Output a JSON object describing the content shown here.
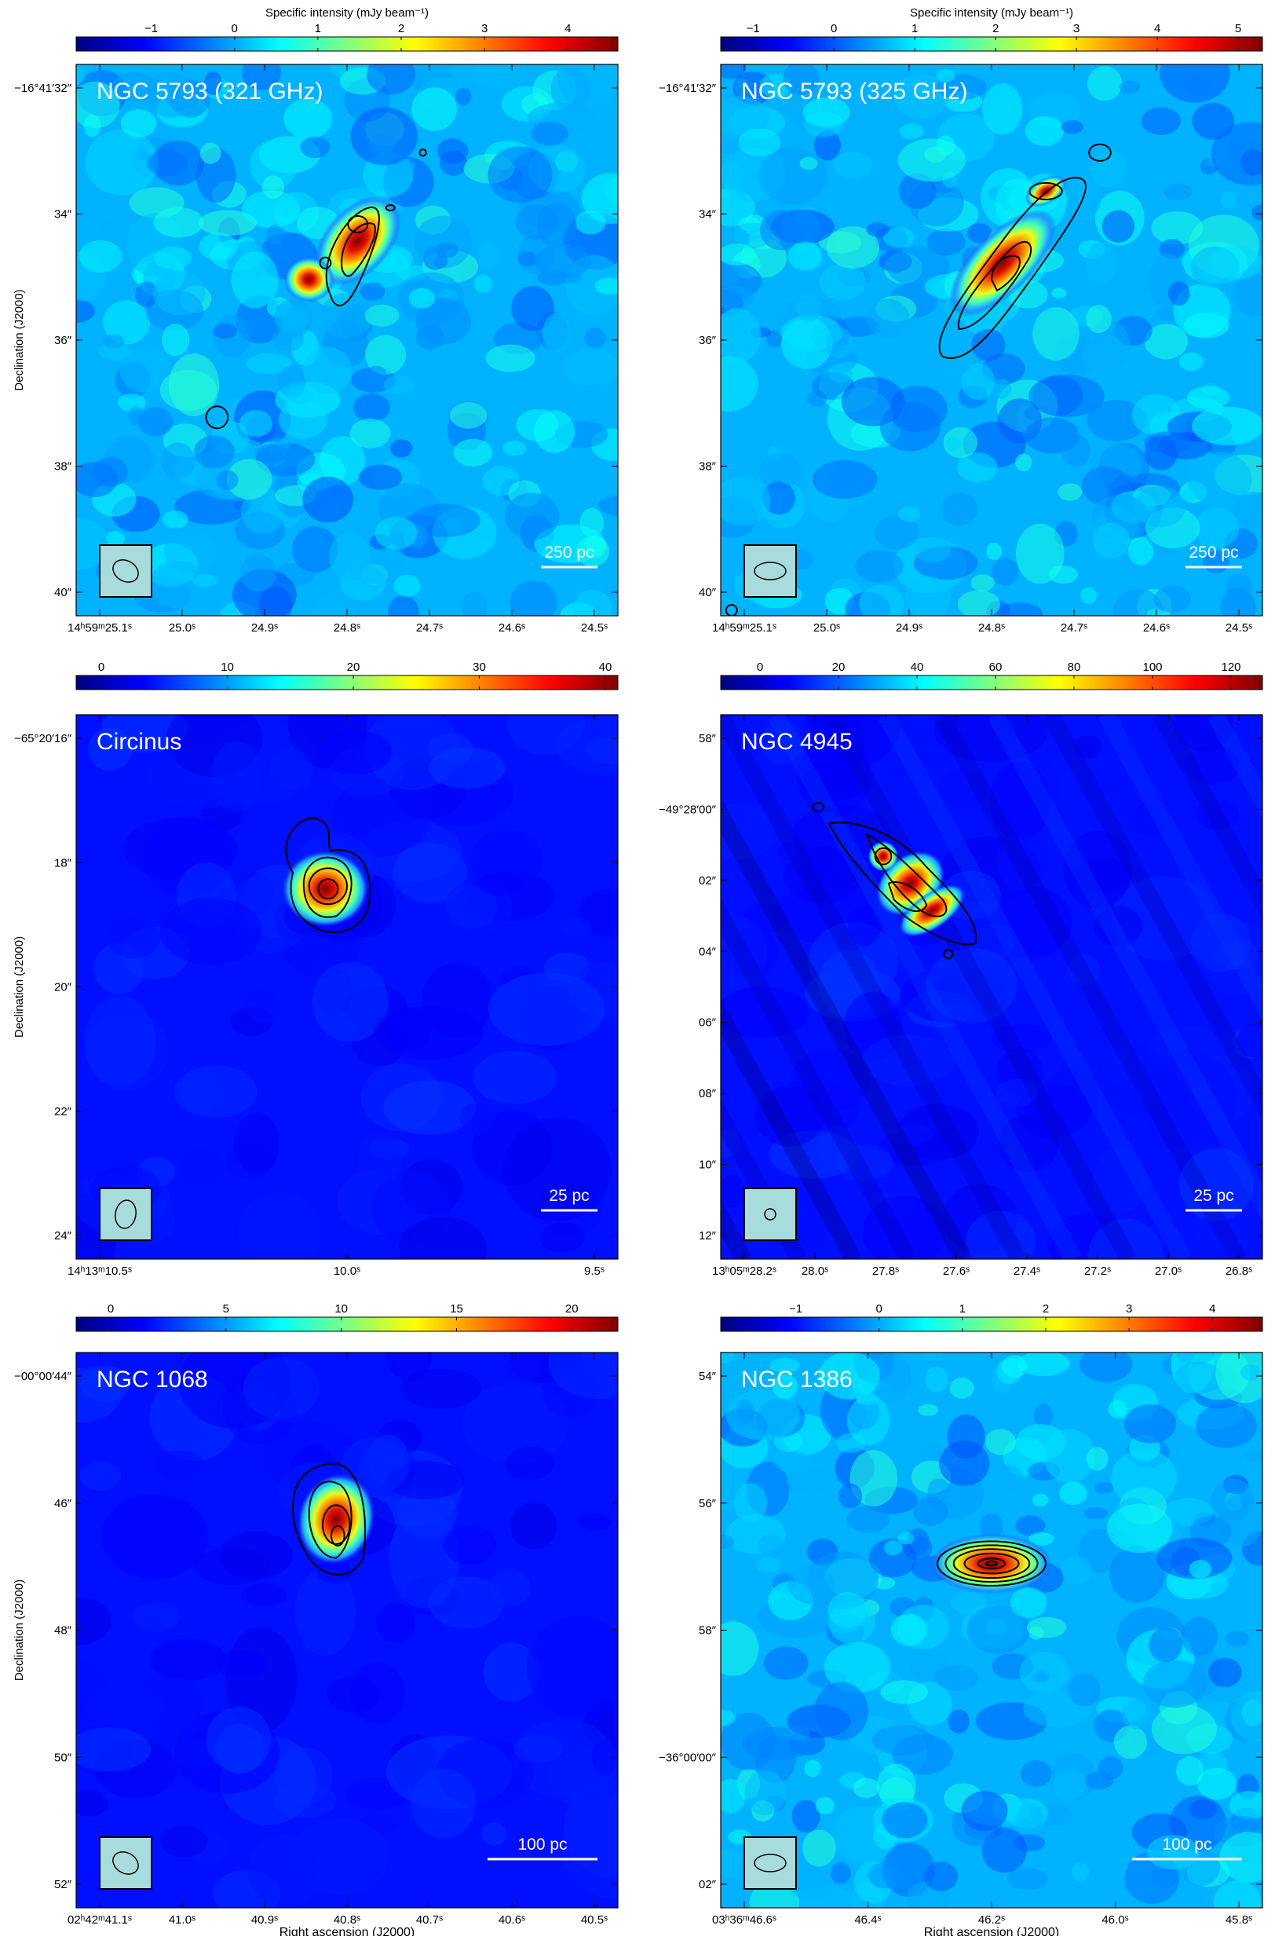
{
  "colors": {
    "jet": [
      "#00007f",
      "#0000ff",
      "#007fff",
      "#00ffff",
      "#7fff7f",
      "#ffff00",
      "#ff7f00",
      "#ff0000",
      "#7f0000"
    ],
    "map_background_low": "#1a3ccc",
    "beam_box": "#a8dcdc"
  },
  "colorbar_title": "Specific intensity (mJy beam⁻¹)",
  "x_axis_label": "Right ascension (J2000)",
  "y_axis_label": "Declination (J2000)",
  "panels": [
    {
      "id": "ngc5793-321",
      "name": "NGC 5793 (321 GHz)",
      "show_cb_title": true,
      "show_ylabel": true,
      "show_xlabel": false,
      "colorbar_ticks": [
        {
          "label": "−1",
          "value": -1
        },
        {
          "label": "0",
          "value": 0
        },
        {
          "label": "1",
          "value": 1
        },
        {
          "label": "2",
          "value": 2
        },
        {
          "label": "3",
          "value": 3
        },
        {
          "label": "4",
          "value": 4
        }
      ],
      "colorbar_range": [
        -1.9,
        4.6
      ],
      "dec_ticks": [
        "−16°41′32″",
        "34″",
        "36″",
        "38″",
        "40″"
      ],
      "ra_ticks": [
        "14ʰ59ᵐ25.1ˢ",
        "25.0ˢ",
        "24.9ˢ",
        "24.8ˢ",
        "24.7ˢ",
        "24.6ˢ",
        "24.5ˢ"
      ],
      "scale_bar": "250 pc",
      "background": "noisy",
      "beam": {
        "shape": "tilted"
      }
    },
    {
      "id": "ngc5793-325",
      "name": "NGC 5793 (325 GHz)",
      "show_cb_title": true,
      "show_ylabel": false,
      "show_xlabel": false,
      "colorbar_ticks": [
        {
          "label": "−1",
          "value": -1
        },
        {
          "label": "0",
          "value": 0
        },
        {
          "label": "1",
          "value": 1
        },
        {
          "label": "2",
          "value": 2
        },
        {
          "label": "3",
          "value": 3
        },
        {
          "label": "4",
          "value": 4
        },
        {
          "label": "5",
          "value": 5
        }
      ],
      "colorbar_range": [
        -1.4,
        5.3
      ],
      "dec_ticks": [
        "−16°41′32″",
        "34″",
        "36″",
        "38″",
        "40″"
      ],
      "ra_ticks": [
        "14ʰ59ᵐ25.1ˢ",
        "25.0ˢ",
        "24.9ˢ",
        "24.8ˢ",
        "24.7ˢ",
        "24.6ˢ",
        "24.5ˢ"
      ],
      "scale_bar": "250 pc",
      "background": "noisy",
      "beam": {
        "shape": "flat"
      }
    },
    {
      "id": "circinus",
      "name": "Circinus",
      "show_cb_title": false,
      "show_ylabel": true,
      "show_xlabel": false,
      "colorbar_ticks": [
        {
          "label": "0",
          "value": 0
        },
        {
          "label": "10",
          "value": 10
        },
        {
          "label": "20",
          "value": 20
        },
        {
          "label": "30",
          "value": 30
        },
        {
          "label": "40",
          "value": 40
        }
      ],
      "colorbar_range": [
        -2,
        41
      ],
      "dec_ticks": [
        "−65°20′16″",
        "18″",
        "20″",
        "22″",
        "24″"
      ],
      "ra_ticks": [
        "14ʰ13ᵐ10.5ˢ",
        "10.0ˢ",
        "9.5ˢ"
      ],
      "scale_bar": "25 pc",
      "background": "smooth",
      "beam": {
        "shape": "tall"
      }
    },
    {
      "id": "ngc4945",
      "name": "NGC 4945",
      "show_cb_title": false,
      "show_ylabel": false,
      "show_xlabel": false,
      "colorbar_ticks": [
        {
          "label": "0",
          "value": 0
        },
        {
          "label": "20",
          "value": 20
        },
        {
          "label": "40",
          "value": 40
        },
        {
          "label": "60",
          "value": 60
        },
        {
          "label": "80",
          "value": 80
        },
        {
          "label": "100",
          "value": 100
        },
        {
          "label": "120",
          "value": 120
        }
      ],
      "colorbar_range": [
        -10,
        128
      ],
      "dec_ticks": [
        "58″",
        "−49°28′00″",
        "02″",
        "04″",
        "06″",
        "08″",
        "10″",
        "12″"
      ],
      "ra_ticks": [
        "13ʰ05ᵐ28.2ˢ",
        "28.0ˢ",
        "27.8ˢ",
        "27.6ˢ",
        "27.4ˢ",
        "27.2ˢ",
        "27.0ˢ",
        "26.8ˢ"
      ],
      "scale_bar": "25 pc",
      "background": "striped",
      "beam": {
        "shape": "small"
      }
    },
    {
      "id": "ngc1068",
      "name": "NGC 1068",
      "show_cb_title": false,
      "show_ylabel": true,
      "show_xlabel": true,
      "colorbar_ticks": [
        {
          "label": "0",
          "value": 0
        },
        {
          "label": "5",
          "value": 5
        },
        {
          "label": "10",
          "value": 10
        },
        {
          "label": "15",
          "value": 15
        },
        {
          "label": "20",
          "value": 20
        }
      ],
      "colorbar_range": [
        -1.5,
        22
      ],
      "dec_ticks": [
        "−00°00′44″",
        "46″",
        "48″",
        "50″",
        "52″"
      ],
      "ra_ticks": [
        "02ʰ42ᵐ41.1ˢ",
        "41.0ˢ",
        "40.9ˢ",
        "40.8ˢ",
        "40.7ˢ",
        "40.6ˢ",
        "40.5ˢ"
      ],
      "scale_bar": "100 pc",
      "background": "smooth",
      "beam": {
        "shape": "tilted"
      }
    },
    {
      "id": "ngc1386",
      "name": "NGC 1386",
      "show_cb_title": false,
      "show_ylabel": false,
      "show_xlabel": true,
      "colorbar_ticks": [
        {
          "label": "−1",
          "value": -1
        },
        {
          "label": "0",
          "value": 0
        },
        {
          "label": "1",
          "value": 1
        },
        {
          "label": "2",
          "value": 2
        },
        {
          "label": "3",
          "value": 3
        },
        {
          "label": "4",
          "value": 4
        }
      ],
      "colorbar_range": [
        -1.9,
        4.6
      ],
      "dec_ticks": [
        "54″",
        "56″",
        "58″",
        "−36°00′00″",
        "02″"
      ],
      "ra_ticks": [
        "03ʰ36ᵐ46.6ˢ",
        "46.4ˢ",
        "46.2ˢ",
        "46.0ˢ",
        "45.8ˢ"
      ],
      "scale_bar": "100 pc",
      "background": "noisy",
      "beam": {
        "shape": "flat"
      }
    }
  ]
}
